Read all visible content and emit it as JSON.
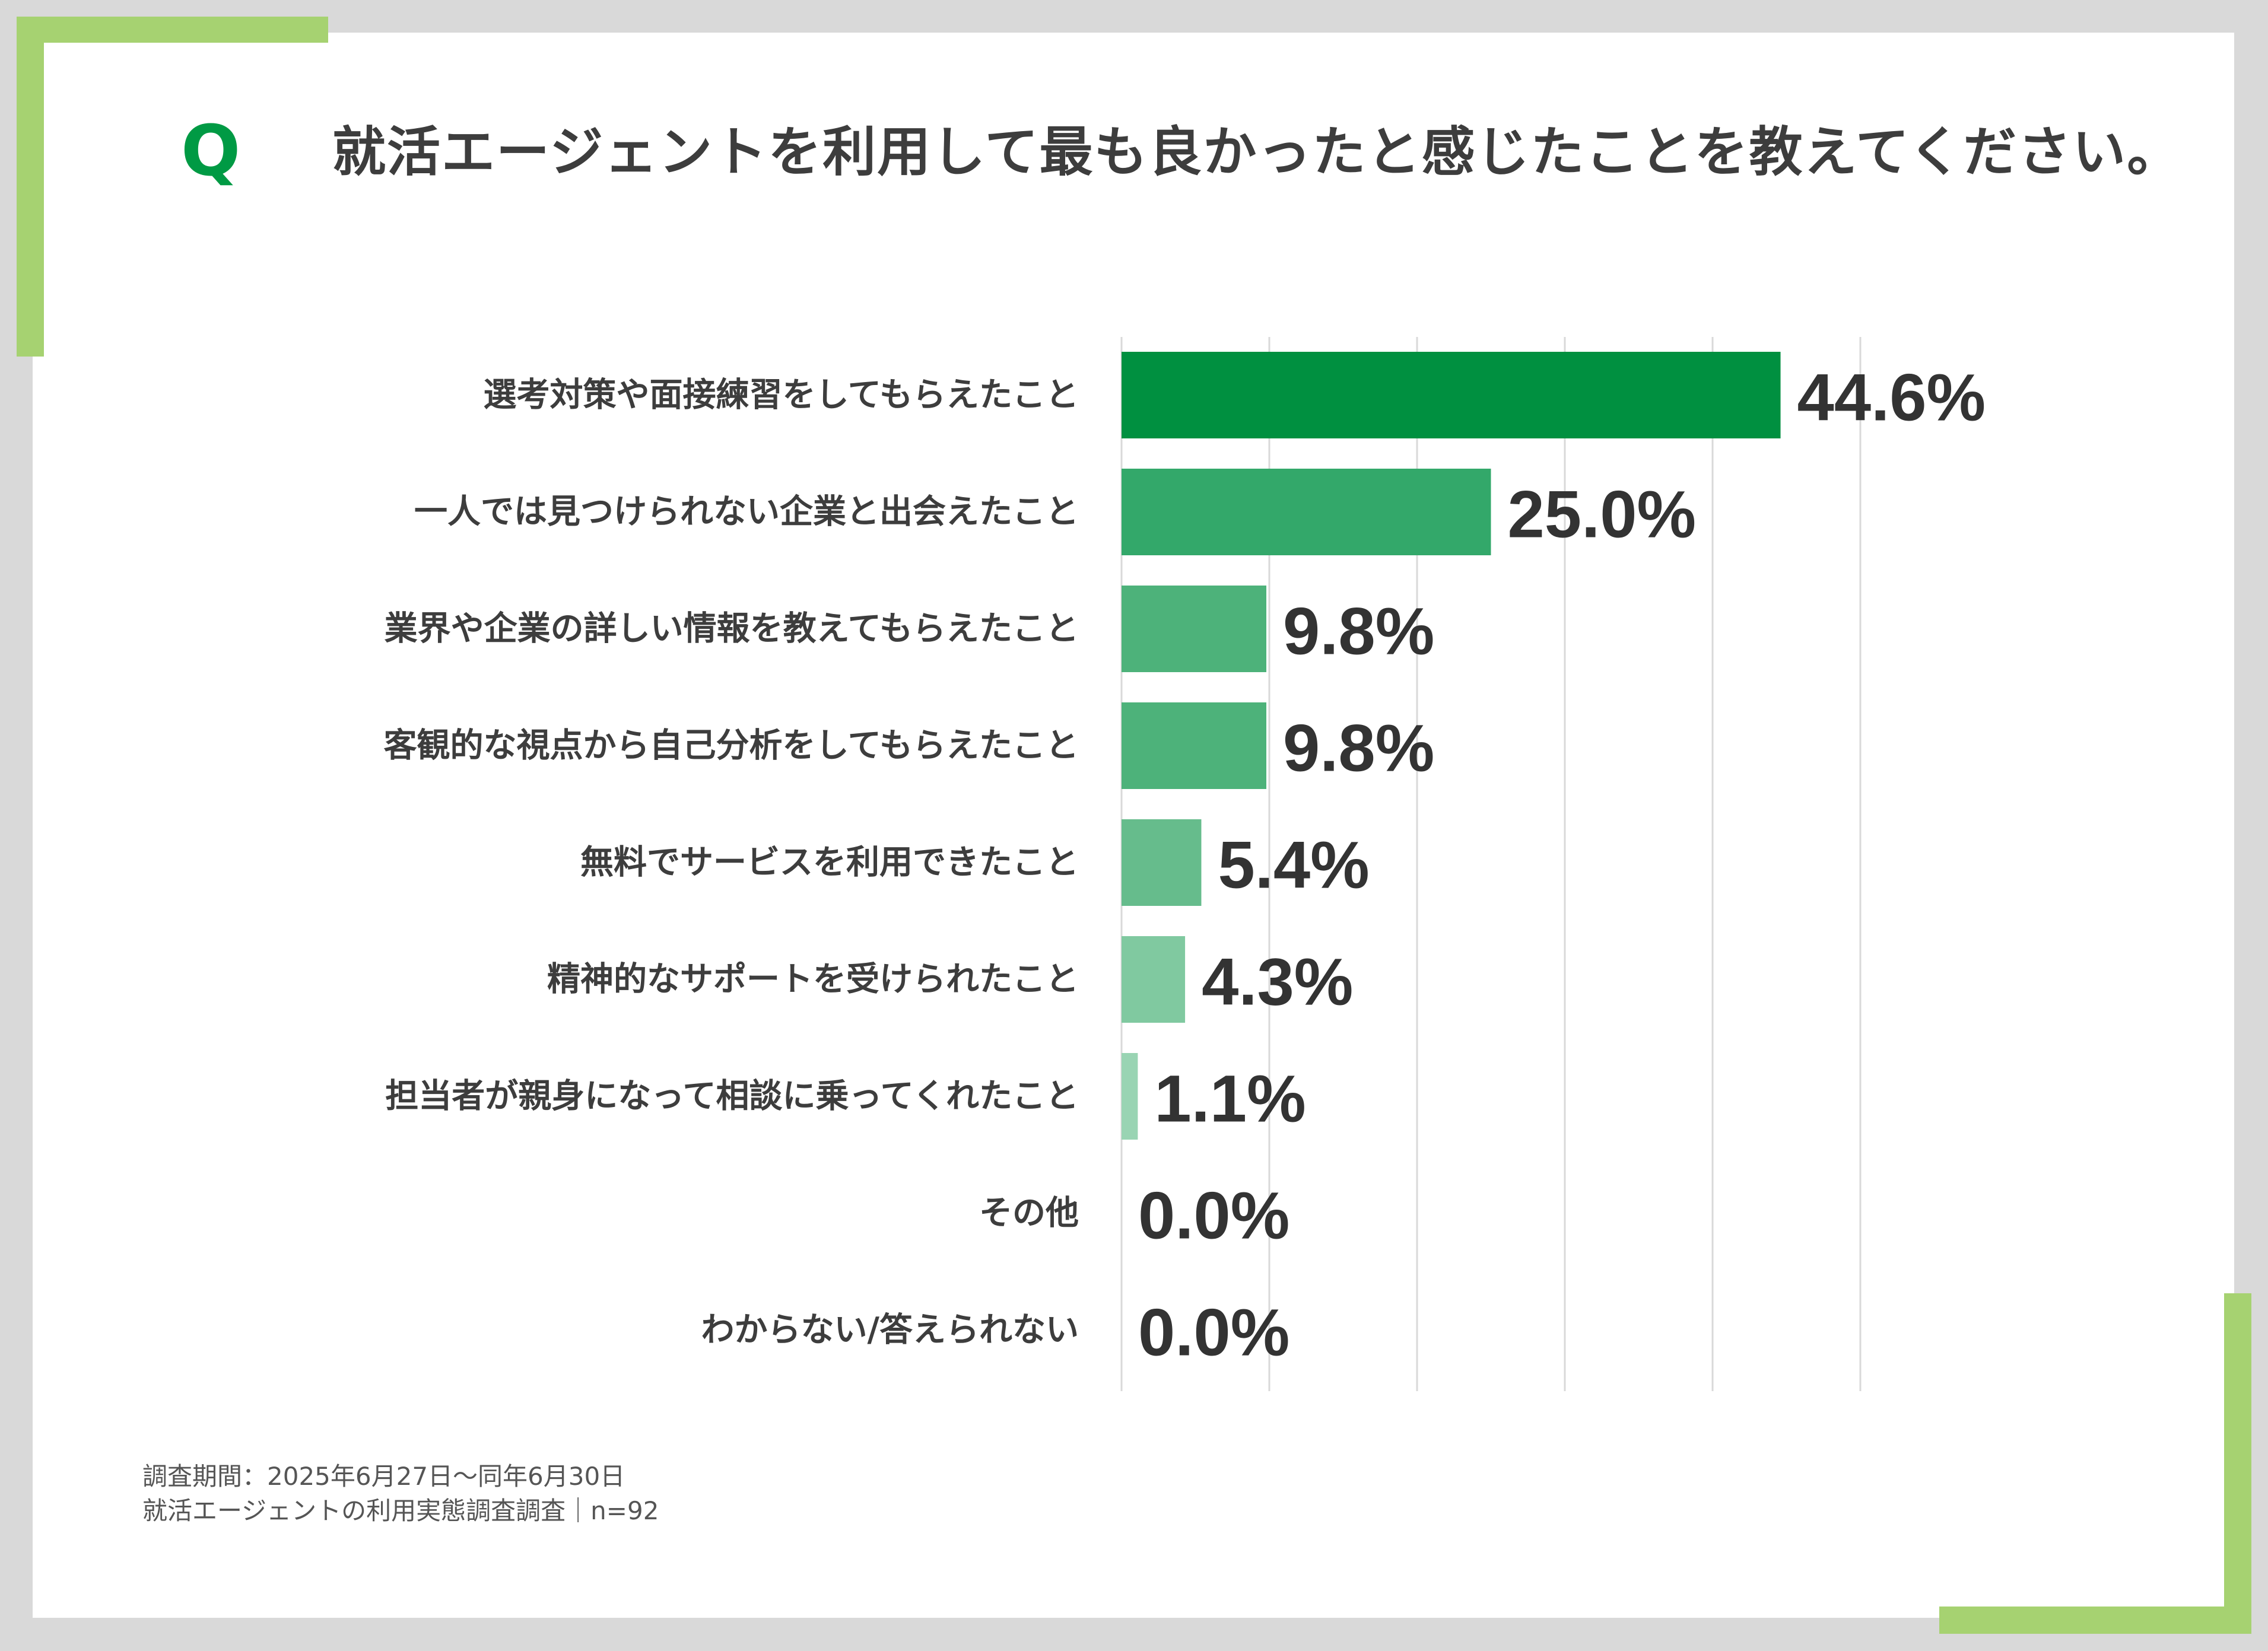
{
  "question": {
    "mark": "Q",
    "text": "就活エージェントを利用して最も良かったと感じたことを教えてください。"
  },
  "colors": {
    "frame": "#d9d9d9",
    "accent": "#a6d271",
    "q_mark": "#009a44",
    "bar_shades": [
      "#009040",
      "#33a86a",
      "#4db27a",
      "#4db27a",
      "#66bc8c",
      "#80c9a0",
      "#99d4b3",
      "#b3dfc6",
      "#b3dfc6"
    ]
  },
  "chart_data": {
    "type": "bar",
    "orientation": "horizontal",
    "categories": [
      "選考対策や面接練習をしてもらえたこと",
      "一人では見つけられない企業と出会えたこと",
      "業界や企業の詳しい情報を教えてもらえたこと",
      "客観的な視点から自己分析をしてもらえたこと",
      "無料でサービスを利用できたこと",
      "精神的なサポートを受けられたこと",
      "担当者が親身になって相談に乗ってくれたこと",
      "その他",
      "わからない/答えられない"
    ],
    "values": [
      44.6,
      25.0,
      9.8,
      9.8,
      5.4,
      4.3,
      1.1,
      0.0,
      0.0
    ],
    "value_labels": [
      "44.6%",
      "25.0%",
      "9.8%",
      "9.8%",
      "5.4%",
      "4.3%",
      "1.1%",
      "0.0%",
      "0.0%"
    ],
    "xlim": [
      0,
      50
    ],
    "x_gridlines": [
      0,
      10,
      20,
      30,
      40,
      50
    ],
    "grid": true,
    "legend": "none"
  },
  "footnote": {
    "line1": "調査期間：2025年6月27日～同年6月30日",
    "line2": "就活エージェントの利用実態調査調査｜n=92"
  }
}
